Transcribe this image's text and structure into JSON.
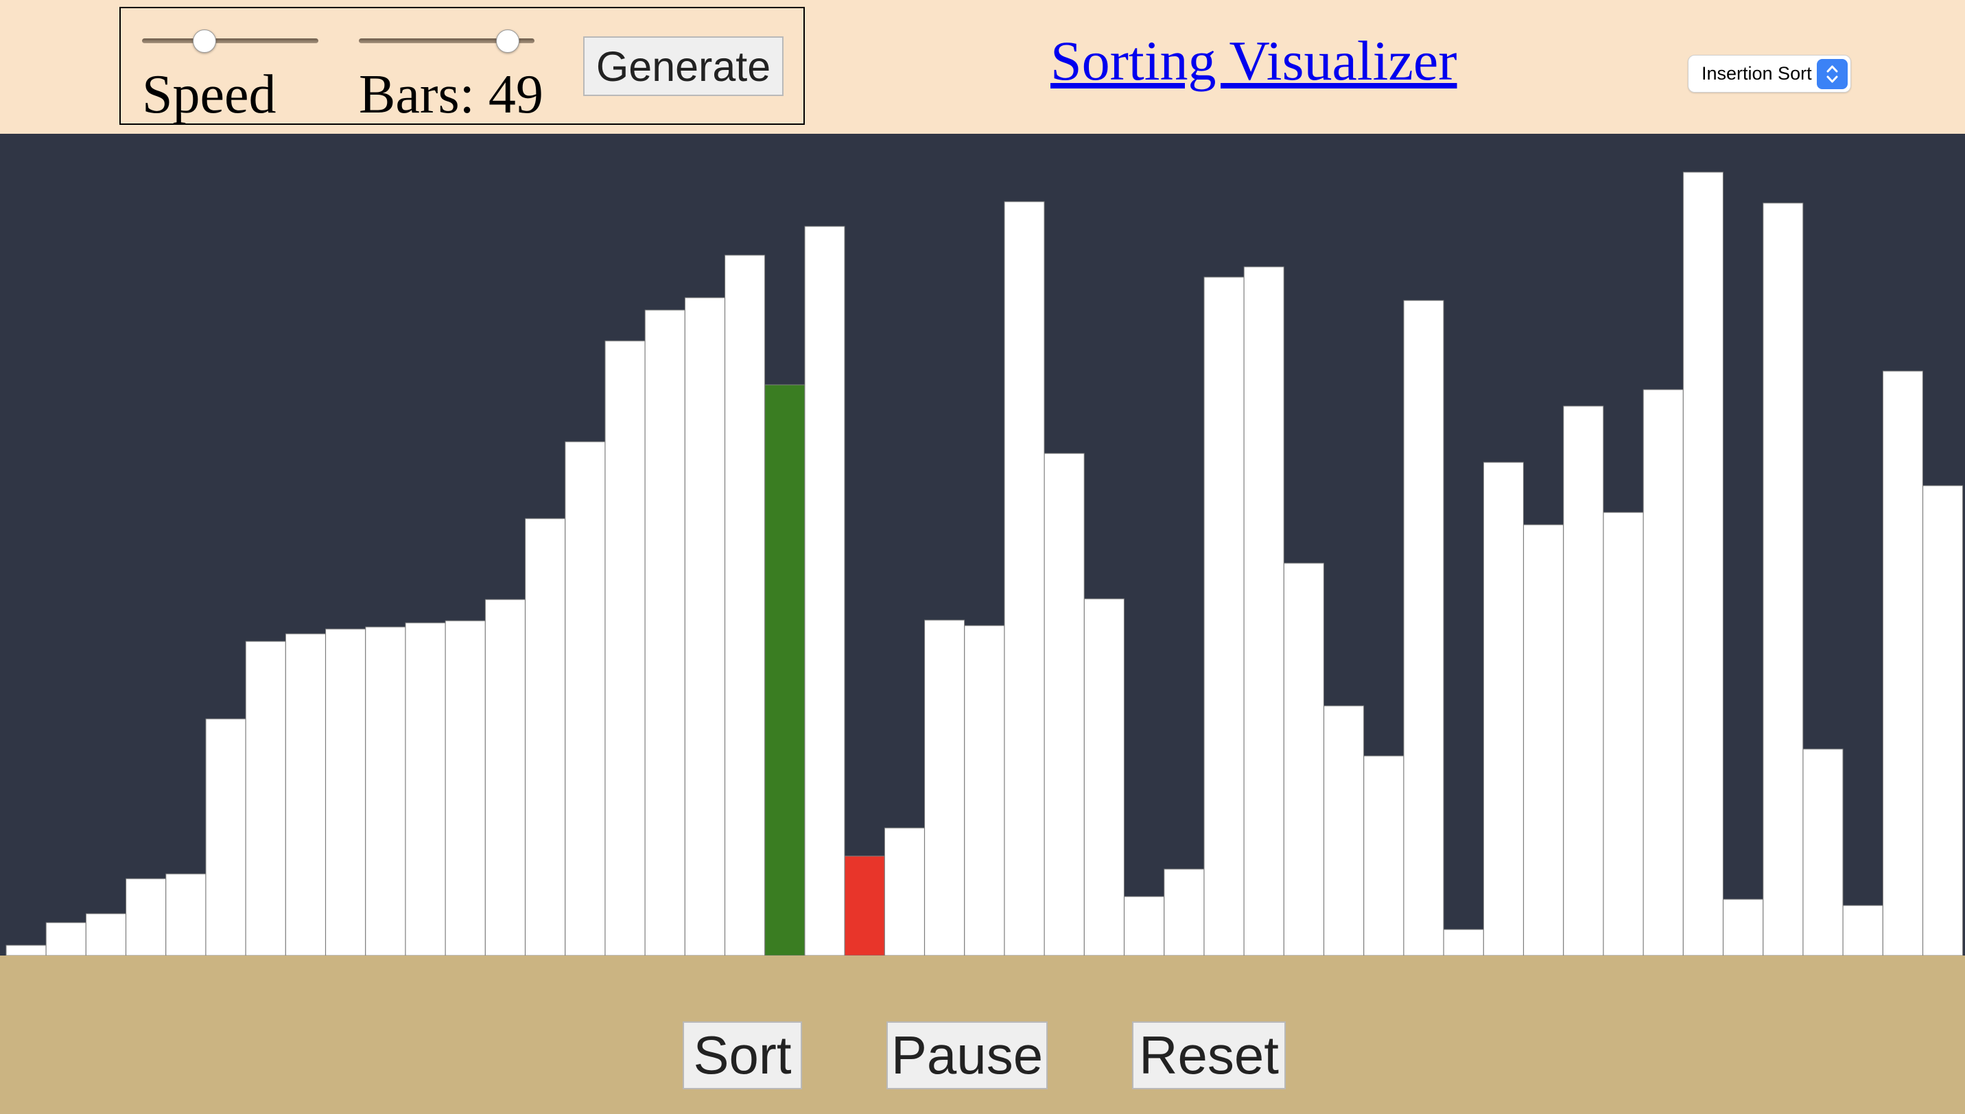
{
  "header": {
    "speed_label": "Speed",
    "bars_label": "Bars: 49",
    "speed_slider_value": 0.33,
    "bars_slider_value": 0.9,
    "generate_label": "Generate",
    "title": "Sorting Visualizer",
    "algorithm": "Insertion Sort"
  },
  "colors": {
    "header_bg": "#fae3c8",
    "bars_bg": "#303645",
    "footer_bg": "#cbb482",
    "bar": "#ffffff",
    "bar_compare": "#3a7d22",
    "bar_current": "#e8352a",
    "link": "#0000ee"
  },
  "chart_data": {
    "type": "bar",
    "values": [
      1.5,
      4.8,
      6.1,
      11.2,
      11.9,
      34.5,
      45.8,
      46.9,
      47.6,
      47.9,
      48.5,
      48.8,
      51.9,
      63.7,
      74.9,
      89.6,
      94.1,
      95.9,
      102.1,
      83.2,
      106.3,
      14.5,
      18.6,
      48.9,
      48.1,
      109.9,
      73.2,
      52.0,
      8.6,
      12.6,
      98.9,
      100.4,
      57.2,
      36.4,
      29.1,
      95.5,
      3.8,
      71.9,
      62.8,
      80.1,
      64.6,
      82.5,
      114.2,
      8.2,
      109.7,
      30.1,
      7.3,
      85.2,
      68.5
    ],
    "compare_index": 19,
    "current_index": 21,
    "count": 49
  },
  "footer": {
    "sort_label": "Sort",
    "pause_label": "Pause",
    "reset_label": "Reset"
  }
}
